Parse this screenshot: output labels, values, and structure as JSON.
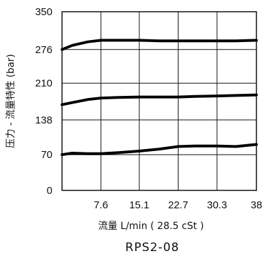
{
  "chart_data": {
    "type": "line",
    "title": "",
    "caption": "RPS2-08",
    "xlabel": "流量 L/min ( 28.5 cSt )",
    "ylabel": "压力 - 流量特性 (bar)",
    "xlim": [
      0,
      38
    ],
    "ylim": [
      0,
      350
    ],
    "xticks": [
      "7.6",
      "15.1",
      "22.7",
      "30.3",
      "38"
    ],
    "yticks": [
      "0",
      "70",
      "138",
      "210",
      "276",
      "350"
    ],
    "grid": true,
    "series": [
      {
        "x": [
          0,
          2,
          5,
          7.6,
          11,
          15.1,
          19,
          22.7,
          26,
          30.3,
          34,
          38
        ],
        "values": [
          276,
          284,
          291,
          294,
          294,
          294,
          293,
          293,
          293,
          293,
          293,
          294
        ]
      },
      {
        "x": [
          0,
          2,
          5,
          7.6,
          11,
          15.1,
          19,
          22.7,
          26,
          30.3,
          34,
          38
        ],
        "values": [
          168,
          172,
          178,
          181,
          182,
          183,
          183,
          183,
          184,
          185,
          186,
          187
        ]
      },
      {
        "x": [
          0,
          2,
          5,
          7.6,
          11,
          15.1,
          19,
          22.7,
          26,
          30.3,
          34,
          38
        ],
        "values": [
          70,
          73,
          72,
          72,
          74,
          77,
          81,
          86,
          87,
          87,
          86,
          90
        ]
      }
    ]
  }
}
